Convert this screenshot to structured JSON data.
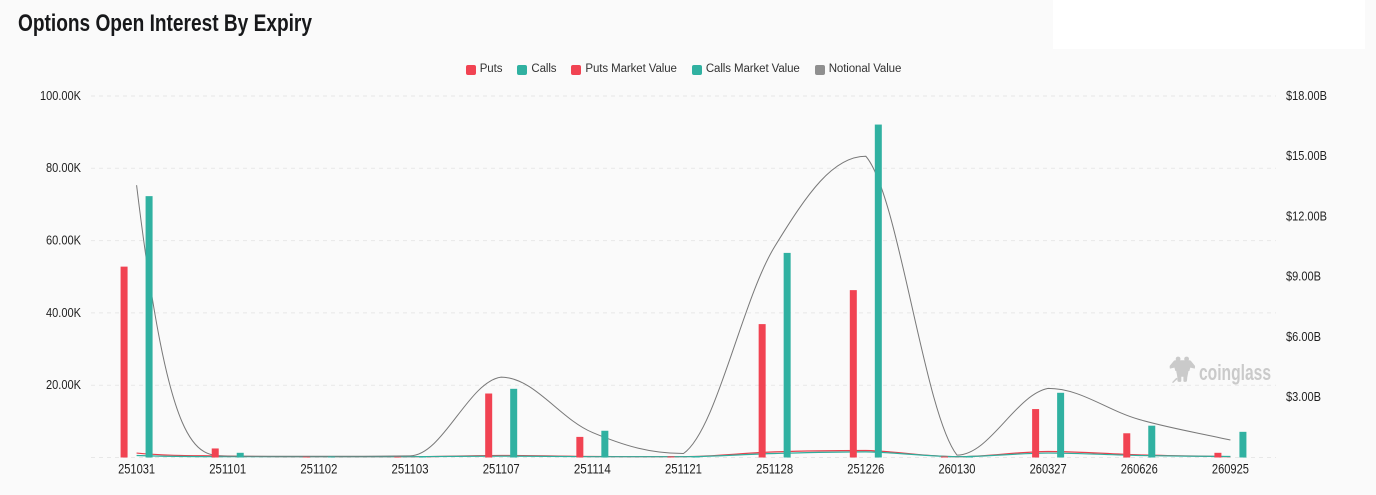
{
  "header": {
    "title": "Options Open Interest By Expiry"
  },
  "watermark": {
    "text": "coinglass"
  },
  "colors": {
    "puts": "#f14352",
    "calls": "#30b1a1",
    "notional": "#787878",
    "grid": "#e7e7e7",
    "axis_label": "#1f1f1f",
    "legend_label": "#333333",
    "background": "#fafafa",
    "panel": "#ffffff",
    "watermark": "#cacaca",
    "title": "#17181a"
  },
  "legend": {
    "items": [
      {
        "label": "Puts",
        "color": "#f14352"
      },
      {
        "label": "Calls",
        "color": "#30b1a1"
      },
      {
        "label": "Puts Market Value",
        "color": "#f14352"
      },
      {
        "label": "Calls Market Value",
        "color": "#30b1a1"
      },
      {
        "label": "Notional Value",
        "color": "#8f8f8f"
      }
    ]
  },
  "chart_data": {
    "type": "bar",
    "title": "Options Open Interest By Expiry",
    "categories": [
      "251031",
      "251101",
      "251102",
      "251103",
      "251107",
      "251114",
      "251121",
      "251128",
      "251226",
      "260130",
      "260327",
      "260626",
      "260925"
    ],
    "series": [
      {
        "name": "Puts",
        "type": "bar",
        "axis": "left",
        "color": "#f14352",
        "values": [
          52.8,
          2.5,
          0.2,
          0.2,
          17.7,
          5.7,
          0.3,
          36.9,
          46.3,
          0.3,
          13.4,
          6.7,
          1.3
        ]
      },
      {
        "name": "Calls",
        "type": "bar",
        "axis": "left",
        "color": "#30b1a1",
        "values": [
          72.3,
          1.3,
          0.3,
          0.3,
          19.0,
          7.4,
          0.4,
          56.6,
          92.1,
          0.4,
          17.9,
          8.8,
          7.1
        ]
      },
      {
        "name": "Puts Market Value",
        "type": "line",
        "axis": "right",
        "color": "#e8414e",
        "values": [
          0.22,
          0.07,
          0.03,
          0.03,
          0.1,
          0.05,
          0.03,
          0.28,
          0.35,
          0.03,
          0.3,
          0.13,
          0.04
        ]
      },
      {
        "name": "Calls Market Value",
        "type": "line",
        "axis": "right",
        "color": "#2fae9d",
        "values": [
          0.1,
          0.03,
          0.02,
          0.02,
          0.07,
          0.04,
          0.02,
          0.2,
          0.28,
          0.03,
          0.22,
          0.1,
          0.05
        ]
      },
      {
        "name": "Notional Value",
        "type": "line",
        "axis": "right",
        "color": "#787878",
        "values": [
          13.56,
          0.07,
          0.06,
          0.08,
          4.0,
          1.25,
          0.2,
          10.5,
          15.0,
          0.12,
          3.44,
          1.89,
          0.87
        ]
      }
    ],
    "left_axis": {
      "unit": "K",
      "min": 0,
      "max": 100,
      "ticks": [
        "20.00K",
        "40.00K",
        "60.00K",
        "80.00K",
        "100.00K"
      ],
      "tick_values": [
        20,
        40,
        60,
        80,
        100
      ]
    },
    "right_axis": {
      "unit": "$B",
      "min": 0,
      "max": 18,
      "ticks": [
        "$3.00B",
        "$6.00B",
        "$9.00B",
        "$12.00B",
        "$15.00B",
        "$18.00B"
      ],
      "tick_values": [
        3,
        6,
        9,
        12,
        15,
        18
      ]
    },
    "xlabel": "",
    "ylabel": "",
    "grid": true,
    "legend_position": "top-center"
  }
}
